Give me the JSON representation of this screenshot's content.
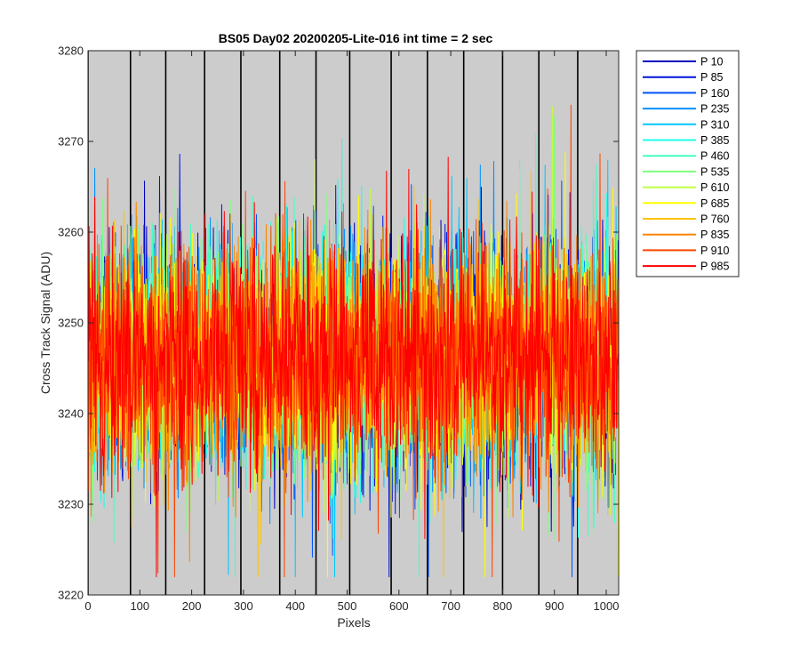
{
  "chart_data": {
    "type": "line",
    "title": "BS05 Day02 20200205-Lite-016 int time = 2 sec",
    "xlabel": "Pixels",
    "ylabel": "Cross Track Signal (ADU)",
    "xlim": [
      0,
      1024
    ],
    "ylim": [
      3220,
      3280
    ],
    "xticks": [
      0,
      100,
      200,
      300,
      400,
      500,
      600,
      700,
      800,
      900,
      1000
    ],
    "yticks": [
      3220,
      3230,
      3240,
      3250,
      3260,
      3270,
      3280
    ],
    "background": "#cccccc",
    "grid": false,
    "vertical_markers": [
      0,
      82,
      150,
      225,
      295,
      370,
      440,
      505,
      585,
      655,
      725,
      800,
      870,
      945
    ],
    "marker_color": "#000000",
    "legend_position": "outside-right-top",
    "noise_profile": {
      "mean": 3246,
      "range_min": 3222,
      "range_max": 3274,
      "points_per_series": 1024
    },
    "series": [
      {
        "name": "P 10",
        "color": "#0000bf"
      },
      {
        "name": "P 85",
        "color": "#0015dd"
      },
      {
        "name": "P 160",
        "color": "#0052ff"
      },
      {
        "name": "P 235",
        "color": "#0091ff"
      },
      {
        "name": "P 310",
        "color": "#00c8ff"
      },
      {
        "name": "P 385",
        "color": "#1effe8"
      },
      {
        "name": "P 460",
        "color": "#45ffc0"
      },
      {
        "name": "P 535",
        "color": "#80ff80"
      },
      {
        "name": "P 610",
        "color": "#c0ff40"
      },
      {
        "name": "P 685",
        "color": "#ffff00"
      },
      {
        "name": "P 760",
        "color": "#ffc400"
      },
      {
        "name": "P 835",
        "color": "#ff8400"
      },
      {
        "name": "P 910",
        "color": "#ff4500"
      },
      {
        "name": "P 985",
        "color": "#ff0000"
      }
    ]
  }
}
